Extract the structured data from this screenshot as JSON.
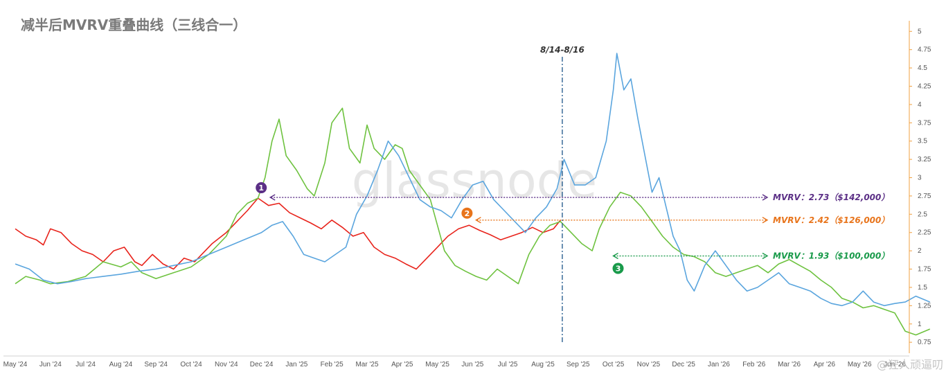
{
  "title": "减半后MVRV重叠曲线（三线合一）",
  "watermark": "glassnode",
  "corner_watermark": "@狂人顽逼叨",
  "event_label": "8/14-8/16",
  "chart_data": {
    "type": "line",
    "x_ticks": [
      "May '24",
      "Jun '24",
      "Jul '24",
      "Aug '24",
      "Sep '24",
      "Oct '24",
      "Nov '24",
      "Dec '24",
      "Jan '25",
      "Feb '25",
      "Mar '25",
      "Apr '25",
      "May '25",
      "Jun '25",
      "Jul '25",
      "Aug '25",
      "Sep '25",
      "Oct '25",
      "Nov '25",
      "Dec '25",
      "Jan '26",
      "Feb '26",
      "Mar '26",
      "Apr '26",
      "May '26",
      "Jun '26"
    ],
    "y_ticks": [
      "0.75",
      "1",
      "1.25",
      "1.5",
      "1.75",
      "2",
      "2.25",
      "2.5",
      "2.75",
      "3",
      "3.25",
      "3.5",
      "3.75",
      "4",
      "4.25",
      "4.5",
      "4.75",
      "5"
    ],
    "ylim": [
      0.6,
      5.05
    ],
    "y_axis_position": "right",
    "event_x": 15.55,
    "series": [
      {
        "color": "#e8231b",
        "points": [
          [
            0,
            2.3
          ],
          [
            0.3,
            2.2
          ],
          [
            0.6,
            2.15
          ],
          [
            0.8,
            2.08
          ],
          [
            1,
            2.3
          ],
          [
            1.3,
            2.25
          ],
          [
            1.6,
            2.1
          ],
          [
            1.9,
            2.0
          ],
          [
            2.2,
            1.95
          ],
          [
            2.5,
            1.85
          ],
          [
            2.8,
            2.0
          ],
          [
            3.1,
            2.05
          ],
          [
            3.4,
            1.85
          ],
          [
            3.6,
            1.8
          ],
          [
            3.9,
            1.95
          ],
          [
            4.2,
            1.82
          ],
          [
            4.5,
            1.75
          ],
          [
            4.8,
            1.9
          ],
          [
            5.1,
            1.85
          ],
          [
            5.3,
            1.95
          ],
          [
            5.6,
            2.1
          ],
          [
            6.0,
            2.25
          ],
          [
            6.3,
            2.4
          ],
          [
            6.6,
            2.55
          ],
          [
            6.9,
            2.72
          ],
          [
            7.2,
            2.62
          ],
          [
            7.5,
            2.65
          ],
          [
            7.8,
            2.52
          ],
          [
            8.1,
            2.45
          ],
          [
            8.4,
            2.38
          ],
          [
            8.7,
            2.3
          ],
          [
            9.0,
            2.42
          ],
          [
            9.3,
            2.32
          ],
          [
            9.6,
            2.2
          ],
          [
            9.9,
            2.25
          ],
          [
            10.2,
            2.05
          ],
          [
            10.5,
            1.95
          ],
          [
            10.8,
            1.9
          ],
          [
            11.1,
            1.82
          ],
          [
            11.4,
            1.75
          ],
          [
            11.7,
            1.9
          ],
          [
            12.0,
            2.05
          ],
          [
            12.3,
            2.2
          ],
          [
            12.6,
            2.3
          ],
          [
            12.9,
            2.35
          ],
          [
            13.2,
            2.28
          ],
          [
            13.5,
            2.22
          ],
          [
            13.8,
            2.15
          ],
          [
            14.1,
            2.2
          ],
          [
            14.4,
            2.25
          ],
          [
            14.7,
            2.32
          ],
          [
            15.0,
            2.25
          ],
          [
            15.3,
            2.3
          ],
          [
            15.5,
            2.42
          ]
        ]
      },
      {
        "color": "#6ec23f",
        "points": [
          [
            0,
            1.55
          ],
          [
            0.3,
            1.65
          ],
          [
            0.7,
            1.6
          ],
          [
            1.0,
            1.55
          ],
          [
            1.5,
            1.58
          ],
          [
            2.0,
            1.65
          ],
          [
            2.5,
            1.85
          ],
          [
            3.0,
            1.78
          ],
          [
            3.3,
            1.85
          ],
          [
            3.6,
            1.7
          ],
          [
            4.0,
            1.62
          ],
          [
            4.5,
            1.7
          ],
          [
            5.0,
            1.78
          ],
          [
            5.5,
            1.95
          ],
          [
            6.0,
            2.2
          ],
          [
            6.3,
            2.5
          ],
          [
            6.6,
            2.65
          ],
          [
            6.9,
            2.72
          ],
          [
            7.1,
            3.0
          ],
          [
            7.3,
            3.5
          ],
          [
            7.5,
            3.8
          ],
          [
            7.7,
            3.3
          ],
          [
            8.0,
            3.1
          ],
          [
            8.3,
            2.85
          ],
          [
            8.5,
            2.75
          ],
          [
            8.8,
            3.2
          ],
          [
            9.0,
            3.75
          ],
          [
            9.3,
            3.95
          ],
          [
            9.5,
            3.4
          ],
          [
            9.8,
            3.2
          ],
          [
            10.0,
            3.72
          ],
          [
            10.2,
            3.4
          ],
          [
            10.5,
            3.25
          ],
          [
            10.8,
            3.45
          ],
          [
            11.0,
            3.4
          ],
          [
            11.2,
            3.1
          ],
          [
            11.5,
            2.9
          ],
          [
            11.8,
            2.7
          ],
          [
            12.0,
            2.35
          ],
          [
            12.2,
            2.0
          ],
          [
            12.5,
            1.8
          ],
          [
            12.8,
            1.72
          ],
          [
            13.1,
            1.65
          ],
          [
            13.4,
            1.6
          ],
          [
            13.7,
            1.75
          ],
          [
            14.0,
            1.65
          ],
          [
            14.3,
            1.55
          ],
          [
            14.6,
            1.95
          ],
          [
            14.9,
            2.2
          ],
          [
            15.2,
            2.35
          ],
          [
            15.5,
            2.4
          ],
          [
            15.8,
            2.25
          ],
          [
            16.1,
            2.1
          ],
          [
            16.4,
            2.0
          ],
          [
            16.6,
            2.3
          ],
          [
            16.9,
            2.6
          ],
          [
            17.2,
            2.8
          ],
          [
            17.5,
            2.75
          ],
          [
            17.8,
            2.6
          ],
          [
            18.1,
            2.4
          ],
          [
            18.4,
            2.2
          ],
          [
            18.7,
            2.05
          ],
          [
            19.0,
            1.95
          ],
          [
            19.3,
            1.92
          ],
          [
            19.6,
            1.85
          ],
          [
            19.9,
            1.7
          ],
          [
            20.2,
            1.65
          ],
          [
            20.5,
            1.7
          ],
          [
            20.8,
            1.75
          ],
          [
            21.1,
            1.8
          ],
          [
            21.4,
            1.7
          ],
          [
            21.7,
            1.82
          ],
          [
            22.0,
            1.88
          ],
          [
            22.3,
            1.8
          ],
          [
            22.6,
            1.72
          ],
          [
            22.9,
            1.6
          ],
          [
            23.2,
            1.5
          ],
          [
            23.5,
            1.35
          ],
          [
            23.8,
            1.3
          ],
          [
            24.1,
            1.22
          ],
          [
            24.4,
            1.25
          ],
          [
            24.7,
            1.2
          ],
          [
            25.0,
            1.15
          ],
          [
            25.3,
            0.9
          ],
          [
            25.6,
            0.85
          ],
          [
            26.0,
            0.93
          ]
        ]
      },
      {
        "color": "#5aa5de",
        "points": [
          [
            0,
            1.82
          ],
          [
            0.4,
            1.75
          ],
          [
            0.8,
            1.6
          ],
          [
            1.2,
            1.55
          ],
          [
            1.6,
            1.58
          ],
          [
            2.0,
            1.62
          ],
          [
            2.5,
            1.65
          ],
          [
            3.0,
            1.68
          ],
          [
            3.5,
            1.72
          ],
          [
            4.0,
            1.75
          ],
          [
            4.5,
            1.8
          ],
          [
            5.0,
            1.85
          ],
          [
            5.5,
            1.95
          ],
          [
            6.0,
            2.05
          ],
          [
            6.5,
            2.15
          ],
          [
            7.0,
            2.25
          ],
          [
            7.3,
            2.35
          ],
          [
            7.6,
            2.4
          ],
          [
            7.9,
            2.2
          ],
          [
            8.2,
            1.95
          ],
          [
            8.5,
            1.9
          ],
          [
            8.8,
            1.85
          ],
          [
            9.1,
            1.95
          ],
          [
            9.4,
            2.05
          ],
          [
            9.7,
            2.5
          ],
          [
            10.0,
            2.75
          ],
          [
            10.3,
            3.1
          ],
          [
            10.6,
            3.5
          ],
          [
            10.9,
            3.3
          ],
          [
            11.2,
            3.0
          ],
          [
            11.5,
            2.7
          ],
          [
            11.8,
            2.6
          ],
          [
            12.1,
            2.55
          ],
          [
            12.4,
            2.45
          ],
          [
            12.7,
            2.7
          ],
          [
            13.0,
            2.9
          ],
          [
            13.3,
            2.95
          ],
          [
            13.6,
            2.7
          ],
          [
            13.9,
            2.55
          ],
          [
            14.2,
            2.4
          ],
          [
            14.5,
            2.25
          ],
          [
            14.8,
            2.45
          ],
          [
            15.1,
            2.6
          ],
          [
            15.4,
            2.85
          ],
          [
            15.6,
            3.25
          ],
          [
            15.9,
            2.9
          ],
          [
            16.2,
            2.9
          ],
          [
            16.5,
            3.0
          ],
          [
            16.8,
            3.5
          ],
          [
            17.0,
            4.2
          ],
          [
            17.1,
            4.7
          ],
          [
            17.3,
            4.2
          ],
          [
            17.5,
            4.35
          ],
          [
            17.7,
            3.8
          ],
          [
            17.9,
            3.3
          ],
          [
            18.1,
            2.8
          ],
          [
            18.3,
            3.0
          ],
          [
            18.5,
            2.6
          ],
          [
            18.7,
            2.2
          ],
          [
            18.9,
            2.0
          ],
          [
            19.1,
            1.6
          ],
          [
            19.3,
            1.45
          ],
          [
            19.6,
            1.8
          ],
          [
            19.9,
            2.0
          ],
          [
            20.2,
            1.8
          ],
          [
            20.5,
            1.6
          ],
          [
            20.8,
            1.45
          ],
          [
            21.1,
            1.5
          ],
          [
            21.4,
            1.6
          ],
          [
            21.7,
            1.7
          ],
          [
            22.0,
            1.55
          ],
          [
            22.3,
            1.5
          ],
          [
            22.6,
            1.45
          ],
          [
            22.9,
            1.35
          ],
          [
            23.2,
            1.28
          ],
          [
            23.5,
            1.25
          ],
          [
            23.8,
            1.3
          ],
          [
            24.1,
            1.45
          ],
          [
            24.4,
            1.3
          ],
          [
            24.7,
            1.25
          ],
          [
            25.0,
            1.28
          ],
          [
            25.3,
            1.3
          ],
          [
            25.6,
            1.38
          ],
          [
            26.0,
            1.3
          ]
        ]
      }
    ],
    "annotations": [
      {
        "marker": "1",
        "text": "MVRV：2.73（$142,000）",
        "value": 2.73,
        "from_x": 7.15,
        "color": "#5b2f86"
      },
      {
        "marker": "2",
        "text": "MVRV：2.42（$126,000）",
        "value": 2.42,
        "from_x": 13.0,
        "color": "#e8741b"
      },
      {
        "marker": "3",
        "text": "MVRV：1.93（$100,000）",
        "value": 1.93,
        "from_x": 16.9,
        "color": "#199a4a"
      }
    ]
  }
}
